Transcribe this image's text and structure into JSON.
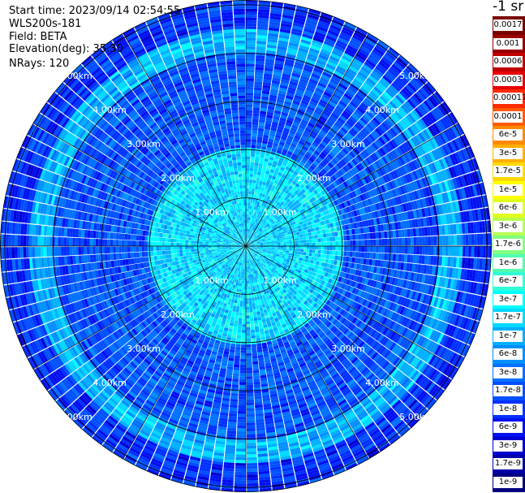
{
  "info": {
    "start_time": "Start time: 2023/09/14 02:54:55",
    "instrument": "WLS200s-181",
    "field": "Field: BETA",
    "elevation": "Elevation(deg): 35.30",
    "nrays": "NRays: 120"
  },
  "colorbar": {
    "unit_label": "-1 sr",
    "labels": [
      "0.0017",
      "0.001",
      "0.0006",
      "0.0003",
      "0.00017",
      "0.0001",
      "6e-5",
      "3e-5",
      "1.7e-5",
      "1e-5",
      "6e-6",
      "3e-6",
      "1.7e-6",
      "1e-6",
      "6e-7",
      "3e-7",
      "1.7e-7",
      "1e-7",
      "6e-8",
      "3e-8",
      "1.7e-8",
      "1e-8",
      "6e-9",
      "3e-9",
      "1.7e-9",
      "1e-9"
    ],
    "colors": [
      "#7a0000",
      "#9a0000",
      "#c00000",
      "#e80000",
      "#ff2a00",
      "#ff5a00",
      "#ff8a00",
      "#ffb000",
      "#ffd800",
      "#ffff00",
      "#e0ff20",
      "#b8ff50",
      "#80ff80",
      "#50ffb0",
      "#30ffd8",
      "#00ffff",
      "#00d8ff",
      "#00b0ff",
      "#0090ff",
      "#0070ff",
      "#0050ff",
      "#0030ff",
      "#0010f0",
      "#0000d0",
      "#0000a8",
      "#000080"
    ]
  },
  "chart_data": {
    "type": "heatmap",
    "projection": "polar PPI",
    "variable": "BETA",
    "rays": 120,
    "range_rings_km": [
      1,
      2,
      3,
      4,
      5
    ],
    "range_labels": [
      "1.00km",
      "2.00km",
      "3.00km",
      "4.00km",
      "5.00km"
    ],
    "max_range_km": 5.1,
    "spokes_deg": [
      0,
      30,
      60,
      90,
      120,
      150,
      180,
      210,
      240,
      270,
      300,
      330
    ],
    "label_bearings_deg": [
      -45,
      45,
      135,
      225
    ],
    "field_pattern": [
      {
        "range_km": [
          0.0,
          2.0
        ],
        "value": "1.7e-7"
      },
      {
        "range_km": [
          2.0,
          4.0
        ],
        "value": "1.7e-8"
      },
      {
        "range_km": [
          4.0,
          4.5
        ],
        "value": "1e-7"
      },
      {
        "range_km": [
          4.5,
          5.1
        ],
        "value": "1e-8"
      }
    ],
    "grid": true
  }
}
